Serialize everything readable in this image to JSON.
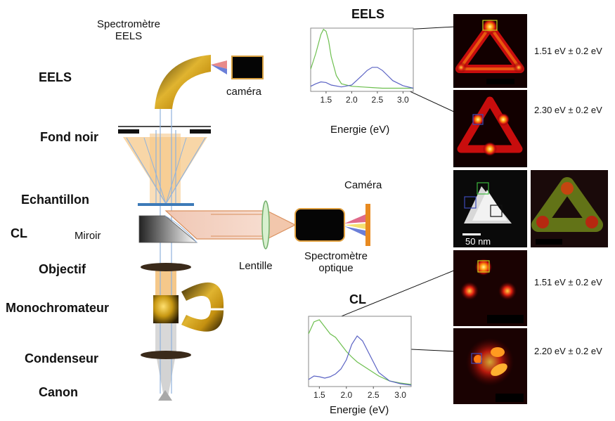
{
  "labels": {
    "spectro_eels_line1": "Spectromètre",
    "spectro_eels_line2": "EELS",
    "eels": "EELS",
    "camera_small": "caméra",
    "fond_noir": "Fond noir",
    "echantillon": "Echantillon",
    "cl": "CL",
    "miroir": "Miroir",
    "objectif": "Objectif",
    "monochromateur": "Monochromateur",
    "condenseur": "Condenseur",
    "canon": "Canon",
    "camera_big": "Caméra",
    "lentille": "Lentille",
    "spectro_optique_line1": "Spectromètre",
    "spectro_optique_line2": "optique",
    "scale_bar": "50 nm"
  },
  "energies": {
    "eels_1": "1.51 eV ± 0.2 eV",
    "eels_2": "2.30 eV ± 0.2 eV",
    "cl_1": "1.51 eV ± 0.2 eV",
    "cl_2": "2.20 eV ± 0.2 eV"
  },
  "chart_data": [
    {
      "type": "line",
      "title": "EELS",
      "xlabel": "Energie (eV)",
      "ylabel": "",
      "xticks": [
        "1.5",
        "2.0",
        "2.5",
        "3.0"
      ],
      "xlim": [
        1.2,
        3.2
      ],
      "series": [
        {
          "color": "#6dbf4f",
          "x": [
            1.2,
            1.3,
            1.4,
            1.45,
            1.5,
            1.55,
            1.6,
            1.7,
            1.8,
            2.0,
            2.2,
            2.4,
            2.6,
            2.8,
            3.0,
            3.2
          ],
          "y": [
            0.35,
            0.6,
            0.9,
            0.98,
            0.95,
            0.8,
            0.55,
            0.25,
            0.12,
            0.08,
            0.07,
            0.06,
            0.05,
            0.05,
            0.05,
            0.05
          ]
        },
        {
          "color": "#5b63c4",
          "x": [
            1.2,
            1.3,
            1.4,
            1.5,
            1.6,
            1.8,
            2.0,
            2.2,
            2.3,
            2.4,
            2.5,
            2.6,
            2.7,
            2.8,
            3.0,
            3.2
          ],
          "y": [
            0.08,
            0.12,
            0.15,
            0.14,
            0.1,
            0.07,
            0.1,
            0.25,
            0.33,
            0.38,
            0.38,
            0.33,
            0.25,
            0.17,
            0.09,
            0.05
          ]
        }
      ]
    },
    {
      "type": "line",
      "title": "CL",
      "xlabel": "Energie (eV)",
      "ylabel": "",
      "xticks": [
        "1.5",
        "2.0",
        "2.5",
        "3.0"
      ],
      "xlim": [
        1.3,
        3.2
      ],
      "series": [
        {
          "color": "#6dbf4f",
          "x": [
            1.3,
            1.4,
            1.5,
            1.6,
            1.7,
            1.8,
            1.9,
            2.0,
            2.1,
            2.2,
            2.4,
            2.6,
            2.8,
            3.0,
            3.2
          ],
          "y": [
            0.75,
            0.92,
            0.95,
            0.85,
            0.75,
            0.7,
            0.6,
            0.5,
            0.42,
            0.35,
            0.25,
            0.15,
            0.08,
            0.05,
            0.03
          ]
        },
        {
          "color": "#5b63c4",
          "x": [
            1.3,
            1.4,
            1.5,
            1.6,
            1.7,
            1.8,
            1.9,
            2.0,
            2.1,
            2.2,
            2.3,
            2.4,
            2.5,
            2.6,
            2.8,
            3.0,
            3.2
          ],
          "y": [
            0.1,
            0.15,
            0.14,
            0.12,
            0.14,
            0.18,
            0.25,
            0.38,
            0.6,
            0.72,
            0.65,
            0.5,
            0.35,
            0.2,
            0.08,
            0.04,
            0.02
          ]
        }
      ]
    }
  ]
}
